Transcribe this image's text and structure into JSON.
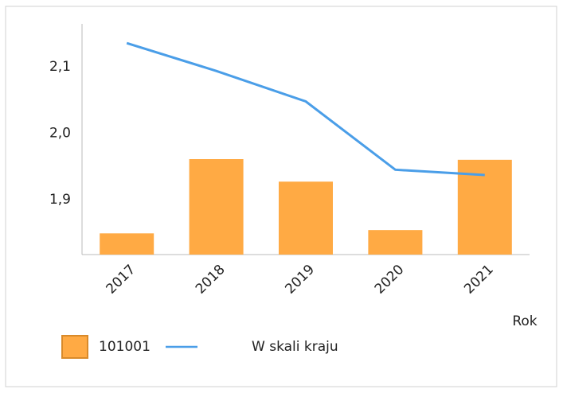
{
  "chart_data": {
    "type": "bar_line",
    "categories": [
      "2017",
      "2018",
      "2019",
      "2020",
      "2021"
    ],
    "series": [
      {
        "name": "101001",
        "type": "bar",
        "color": "#ffaa44",
        "values": [
          1.849,
          1.961,
          1.927,
          1.854,
          1.96
        ]
      },
      {
        "name": "W skali kraju",
        "type": "line",
        "color": "#4a9ee8",
        "values": [
          2.136,
          2.094,
          2.048,
          1.945,
          1.937
        ]
      }
    ],
    "x_label": "Rok",
    "ylim": [
      1.817,
      2.165
    ],
    "yticks": [
      {
        "value": 1.9,
        "label": "1,9"
      },
      {
        "value": 2.0,
        "label": "2,0"
      },
      {
        "value": 2.1,
        "label": "2,1"
      }
    ],
    "grid": false
  }
}
